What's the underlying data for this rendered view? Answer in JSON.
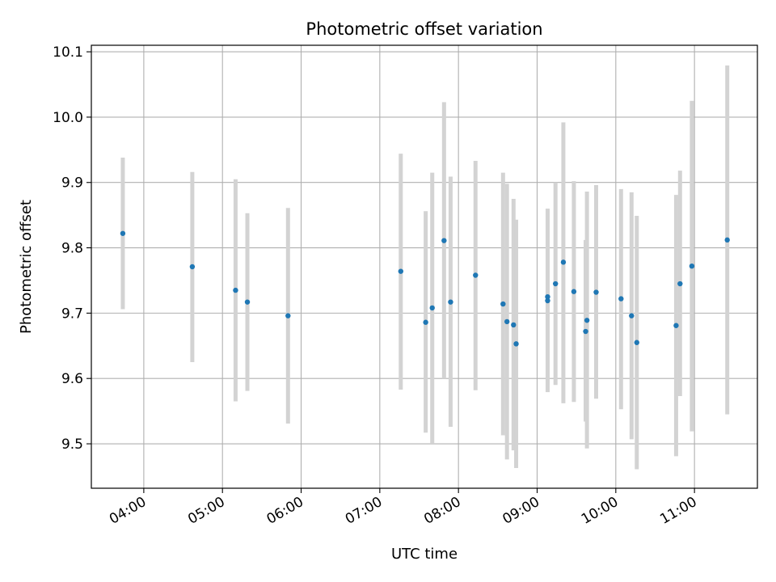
{
  "chart_data": {
    "type": "scatter",
    "title": "Photometric offset variation",
    "xlabel": "UTC time",
    "ylabel": "Photometric offset",
    "x_axis": {
      "type": "time",
      "unit": "hours UTC",
      "range": [
        "03:20",
        "11:48"
      ]
    },
    "y_axis": {
      "range": [
        9.432,
        10.11
      ]
    },
    "grid": true,
    "legend": "none",
    "marker_color": "#1f77b4",
    "errorbar_color": "#d3d3d3",
    "x_ticks": [
      "04:00",
      "05:00",
      "06:00",
      "07:00",
      "08:00",
      "09:00",
      "10:00",
      "11:00"
    ],
    "y_ticks": [
      "9.5",
      "9.6",
      "9.7",
      "9.8",
      "9.9",
      "10.0",
      "10.1"
    ],
    "points": [
      {
        "t": "03:44",
        "y": 9.822,
        "lo": 9.706,
        "hi": 9.938
      },
      {
        "t": "04:37",
        "y": 9.771,
        "lo": 9.625,
        "hi": 9.916
      },
      {
        "t": "05:10",
        "y": 9.735,
        "lo": 9.565,
        "hi": 9.905
      },
      {
        "t": "05:19",
        "y": 9.717,
        "lo": 9.581,
        "hi": 9.853
      },
      {
        "t": "05:50",
        "y": 9.696,
        "lo": 9.531,
        "hi": 9.861
      },
      {
        "t": "07:16",
        "y": 9.764,
        "lo": 9.583,
        "hi": 9.944
      },
      {
        "t": "07:35",
        "y": 9.686,
        "lo": 9.517,
        "hi": 9.856
      },
      {
        "t": "07:40",
        "y": 9.708,
        "lo": 9.5,
        "hi": 9.915
      },
      {
        "t": "07:49",
        "y": 9.811,
        "lo": 9.6,
        "hi": 10.023
      },
      {
        "t": "07:54",
        "y": 9.717,
        "lo": 9.526,
        "hi": 9.909
      },
      {
        "t": "08:13",
        "y": 9.758,
        "lo": 9.582,
        "hi": 9.933
      },
      {
        "t": "08:34",
        "y": 9.714,
        "lo": 9.513,
        "hi": 9.915
      },
      {
        "t": "08:37",
        "y": 9.687,
        "lo": 9.476,
        "hi": 9.898
      },
      {
        "t": "08:42",
        "y": 9.682,
        "lo": 9.49,
        "hi": 9.875
      },
      {
        "t": "08:44",
        "y": 9.653,
        "lo": 9.463,
        "hi": 9.843
      },
      {
        "t": "09:08",
        "y": 9.719,
        "lo": 9.579,
        "hi": 9.859
      },
      {
        "t": "09:08",
        "y": 9.725,
        "lo": 9.59,
        "hi": 9.86
      },
      {
        "t": "09:14",
        "y": 9.745,
        "lo": 9.59,
        "hi": 9.9
      },
      {
        "t": "09:20",
        "y": 9.778,
        "lo": 9.562,
        "hi": 9.992
      },
      {
        "t": "09:28",
        "y": 9.733,
        "lo": 9.564,
        "hi": 9.902
      },
      {
        "t": "09:37",
        "y": 9.672,
        "lo": 9.534,
        "hi": 9.812
      },
      {
        "t": "09:38",
        "y": 9.689,
        "lo": 9.493,
        "hi": 9.886
      },
      {
        "t": "09:45",
        "y": 9.732,
        "lo": 9.569,
        "hi": 9.896
      },
      {
        "t": "10:04",
        "y": 9.722,
        "lo": 9.553,
        "hi": 9.89
      },
      {
        "t": "10:12",
        "y": 9.696,
        "lo": 9.507,
        "hi": 9.885
      },
      {
        "t": "10:16",
        "y": 9.655,
        "lo": 9.461,
        "hi": 9.849
      },
      {
        "t": "10:46",
        "y": 9.681,
        "lo": 9.481,
        "hi": 9.881
      },
      {
        "t": "10:49",
        "y": 9.745,
        "lo": 9.573,
        "hi": 9.918
      },
      {
        "t": "10:58",
        "y": 9.772,
        "lo": 9.519,
        "hi": 10.025
      },
      {
        "t": "11:25",
        "y": 9.812,
        "lo": 9.545,
        "hi": 10.079
      }
    ]
  }
}
